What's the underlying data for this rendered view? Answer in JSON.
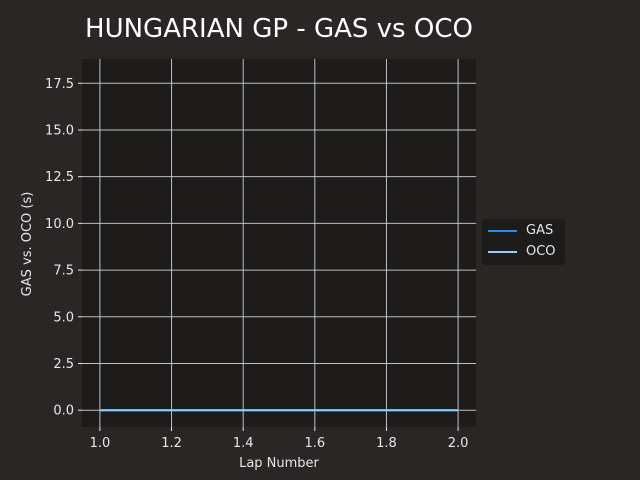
{
  "chart_data": {
    "type": "line",
    "title": "HUNGARIAN GP - GAS vs OCO",
    "xlabel": "Lap Number",
    "ylabel": "GAS vs. OCO (s)",
    "xlim": [
      0.95,
      2.05
    ],
    "ylim": [
      -0.9,
      18.8
    ],
    "x_ticks": [
      1.0,
      1.2,
      1.4,
      1.6,
      1.8,
      2.0
    ],
    "x_tick_labels": [
      "1.0",
      "1.2",
      "1.4",
      "1.6",
      "1.8",
      "2.0"
    ],
    "y_ticks": [
      0.0,
      2.5,
      5.0,
      7.5,
      10.0,
      12.5,
      15.0,
      17.5
    ],
    "y_tick_labels": [
      "0.0",
      "2.5",
      "5.0",
      "7.5",
      "10.0",
      "12.5",
      "15.0",
      "17.5"
    ],
    "grid": true,
    "legend_position": "right",
    "series": [
      {
        "name": "GAS",
        "color": "#1f8fff",
        "x": [
          1,
          2
        ],
        "y": [
          0,
          0
        ]
      },
      {
        "name": "OCO",
        "color": "#8fd0ff",
        "x": [
          1,
          2
        ],
        "y": [
          0,
          0
        ]
      }
    ]
  },
  "colors": {
    "figure_background": "#292625",
    "plot_background": "#1e1c1b",
    "grid": "#bfbfbf",
    "text": "#e6e6e6"
  }
}
